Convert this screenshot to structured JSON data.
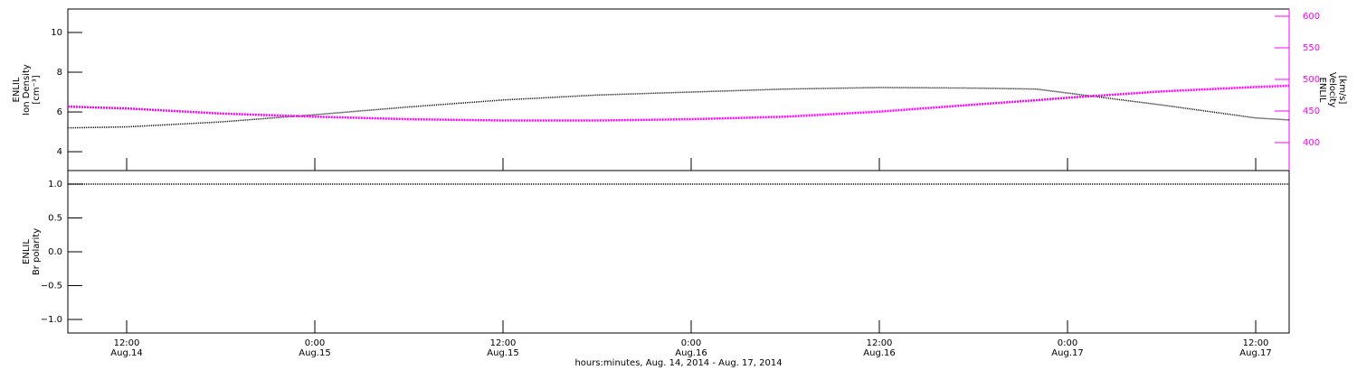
{
  "chart_data": [
    {
      "type": "line",
      "ylabel": [
        "ENLIL",
        "Ion Density",
        "[cm⁻³]"
      ],
      "y2label": [
        "ENLIL",
        "Velocity",
        "[km/s]"
      ],
      "x": [
        "2014-08-14T08:15",
        "2014-08-14T12:00",
        "2014-08-14T18:00",
        "2014-08-15T00:00",
        "2014-08-15T06:00",
        "2014-08-15T12:00",
        "2014-08-15T18:00",
        "2014-08-16T00:00",
        "2014-08-16T06:00",
        "2014-08-16T12:00",
        "2014-08-16T18:00",
        "2014-08-16T22:00",
        "2014-08-17T00:00",
        "2014-08-17T06:00",
        "2014-08-17T12:00",
        "2014-08-17T14:08"
      ],
      "xlim": [
        "2014-08-14T08:15",
        "2014-08-17T14:08"
      ],
      "series": [
        {
          "color": "#000000",
          "values": [
            5.2,
            5.25,
            5.5,
            5.86,
            6.25,
            6.6,
            6.85,
            7.0,
            7.15,
            7.23,
            7.2,
            7.15,
            6.95,
            6.35,
            5.7,
            5.6
          ]
        },
        {
          "color": "#ff00ff",
          "axis": "y2",
          "values": [
            457,
            454,
            446,
            441,
            437,
            435,
            435,
            437,
            441,
            449,
            460,
            467,
            471,
            481,
            488,
            490
          ]
        }
      ],
      "ylim": [
        3.05,
        11.18
      ],
      "yticks": [
        4,
        6,
        8,
        10
      ],
      "y2lim": [
        355.7,
        611.4
      ],
      "y2ticks": [
        400,
        450,
        500,
        550,
        600
      ]
    },
    {
      "type": "line",
      "ylabel": [
        "ENLIL",
        "Br polarity"
      ],
      "x": [
        "2014-08-14T08:15",
        "2014-08-14T12:00",
        "2014-08-14T18:00",
        "2014-08-15T00:00",
        "2014-08-15T06:00",
        "2014-08-15T12:00",
        "2014-08-15T18:00",
        "2014-08-16T00:00",
        "2014-08-16T06:00",
        "2014-08-16T12:00",
        "2014-08-16T18:00",
        "2014-08-17T00:00",
        "2014-08-17T06:00",
        "2014-08-17T12:00",
        "2014-08-17T14:08"
      ],
      "xlim": [
        "2014-08-14T08:15",
        "2014-08-17T14:08"
      ],
      "series": [
        {
          "color": "#000000",
          "values": [
            1,
            1,
            1,
            1,
            1,
            1,
            1,
            1,
            1,
            1,
            1,
            1,
            1,
            1,
            1
          ]
        }
      ],
      "ylim": [
        -1.2,
        1.2
      ],
      "yticks": [
        {
          "value": 1,
          "label": "1.0"
        },
        {
          "value": 0.5,
          "label": "0.5"
        },
        {
          "value": 0,
          "label": "0.0"
        },
        {
          "value": -0.5,
          "label": "−0.5"
        },
        {
          "value": -1,
          "label": "−1.0"
        }
      ],
      "xticks": [
        {
          "value": "2014-08-14T12:00",
          "label": "12:00",
          "date": "Aug.14"
        },
        {
          "value": "2014-08-15T00:00",
          "label": "0:00",
          "date": "Aug.15"
        },
        {
          "value": "2014-08-15T12:00",
          "label": "12:00",
          "date": "Aug.15"
        },
        {
          "value": "2014-08-16T00:00",
          "label": "0:00",
          "date": "Aug.16"
        },
        {
          "value": "2014-08-16T12:00",
          "label": "12:00",
          "date": "Aug.16"
        },
        {
          "value": "2014-08-17T00:00",
          "label": "0:00",
          "date": "Aug.17"
        },
        {
          "value": "2014-08-17T12:00",
          "label": "12:00",
          "date": "Aug.17"
        }
      ],
      "xlabel": "hours:minutes, Aug. 14, 2014 - Aug. 17, 2014"
    }
  ]
}
